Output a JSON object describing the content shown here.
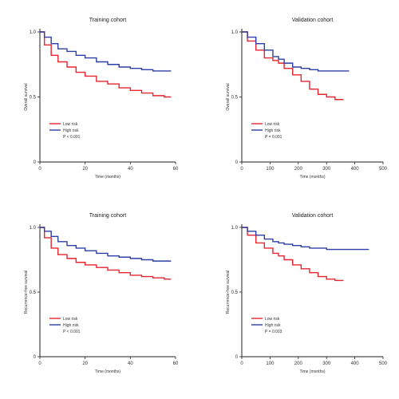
{
  "colors": {
    "red": "#e8242f",
    "blue": "#2b3fa6",
    "axis": "#222222"
  },
  "chart_data": [
    {
      "type": "line",
      "title": "Training cohort",
      "xlabel": "Time (months)",
      "ylabel": "Overall survival",
      "xlim": [
        0,
        60
      ],
      "ylim": [
        0,
        1
      ],
      "x_ticks": [
        "0",
        "20",
        "40",
        "60"
      ],
      "y_ticks": [
        "0",
        "0.5",
        "1.0"
      ],
      "legend": [
        "Low risk",
        "High risk",
        "P < 0.001"
      ],
      "legend_placement": "bottom-left",
      "series": [
        {
          "name": "Low risk",
          "color": "red",
          "x": [
            0,
            2,
            5,
            8,
            12,
            16,
            20,
            25,
            30,
            35,
            40,
            45,
            50,
            55,
            58
          ],
          "y": [
            1.0,
            0.9,
            0.82,
            0.77,
            0.73,
            0.69,
            0.66,
            0.62,
            0.6,
            0.57,
            0.55,
            0.53,
            0.51,
            0.5,
            0.5
          ]
        },
        {
          "name": "High risk",
          "color": "blue",
          "x": [
            0,
            2,
            5,
            8,
            12,
            16,
            20,
            25,
            30,
            35,
            40,
            45,
            50,
            58
          ],
          "y": [
            1.0,
            0.96,
            0.91,
            0.87,
            0.85,
            0.82,
            0.8,
            0.77,
            0.75,
            0.73,
            0.72,
            0.71,
            0.7,
            0.7
          ]
        }
      ]
    },
    {
      "type": "line",
      "title": "Validation cohort",
      "xlabel": "Time (months)",
      "ylabel": "Overall survival",
      "xlim": [
        0,
        500
      ],
      "ylim": [
        0,
        1
      ],
      "x_ticks": [
        "0",
        "100",
        "200",
        "300",
        "400",
        "500"
      ],
      "y_ticks": [
        "0",
        "0.5",
        "1.0"
      ],
      "legend": [
        "Low risk",
        "High risk",
        "P = 0.001"
      ],
      "legend_placement": "bottom-left",
      "series": [
        {
          "name": "Low risk",
          "color": "red",
          "x": [
            0,
            20,
            50,
            80,
            110,
            130,
            150,
            180,
            210,
            240,
            270,
            300,
            330,
            360
          ],
          "y": [
            1.0,
            0.93,
            0.86,
            0.8,
            0.78,
            0.76,
            0.72,
            0.67,
            0.62,
            0.56,
            0.52,
            0.5,
            0.48,
            0.48
          ]
        },
        {
          "name": "High risk",
          "color": "blue",
          "x": [
            0,
            20,
            50,
            80,
            110,
            130,
            150,
            180,
            210,
            240,
            270,
            300,
            330,
            380
          ],
          "y": [
            1.0,
            0.96,
            0.91,
            0.86,
            0.81,
            0.79,
            0.76,
            0.73,
            0.72,
            0.71,
            0.7,
            0.7,
            0.7,
            0.7
          ]
        }
      ]
    },
    {
      "type": "line",
      "title": "Training cohort",
      "xlabel": "Time (months)",
      "ylabel": "Recurrence-free survival",
      "xlim": [
        0,
        60
      ],
      "ylim": [
        0,
        1
      ],
      "x_ticks": [
        "0",
        "20",
        "40",
        "60"
      ],
      "y_ticks": [
        "0",
        "0.5",
        "1.0"
      ],
      "legend": [
        "Low risk",
        "High risk",
        "P < 0.001"
      ],
      "legend_placement": "bottom-left",
      "series": [
        {
          "name": "Low risk",
          "color": "red",
          "x": [
            0,
            2,
            5,
            8,
            12,
            16,
            20,
            25,
            30,
            35,
            40,
            45,
            50,
            55,
            58
          ],
          "y": [
            1.0,
            0.92,
            0.84,
            0.79,
            0.76,
            0.73,
            0.71,
            0.69,
            0.67,
            0.65,
            0.63,
            0.62,
            0.61,
            0.6,
            0.6
          ]
        },
        {
          "name": "High risk",
          "color": "blue",
          "x": [
            0,
            2,
            5,
            8,
            12,
            16,
            20,
            25,
            30,
            35,
            40,
            45,
            50,
            58
          ],
          "y": [
            1.0,
            0.97,
            0.93,
            0.89,
            0.86,
            0.84,
            0.82,
            0.8,
            0.78,
            0.77,
            0.76,
            0.75,
            0.74,
            0.74
          ]
        }
      ]
    },
    {
      "type": "line",
      "title": "Validation cohort",
      "xlabel": "Time (months)",
      "ylabel": "Recurrence-free survival",
      "xlim": [
        0,
        500
      ],
      "ylim": [
        0,
        1
      ],
      "x_ticks": [
        "0",
        "100",
        "200",
        "300",
        "400",
        "500"
      ],
      "y_ticks": [
        "0",
        "0.5",
        "1.0"
      ],
      "legend": [
        "Low risk",
        "High risk",
        "P = 0.003"
      ],
      "legend_placement": "bottom-left",
      "series": [
        {
          "name": "Low risk",
          "color": "red",
          "x": [
            0,
            20,
            50,
            80,
            110,
            130,
            150,
            180,
            210,
            240,
            270,
            300,
            330,
            360
          ],
          "y": [
            1.0,
            0.94,
            0.88,
            0.84,
            0.8,
            0.78,
            0.75,
            0.71,
            0.68,
            0.65,
            0.62,
            0.6,
            0.59,
            0.59
          ]
        },
        {
          "name": "High risk",
          "color": "blue",
          "x": [
            0,
            20,
            50,
            80,
            110,
            130,
            150,
            180,
            210,
            240,
            270,
            300,
            330,
            360,
            390,
            420,
            450
          ],
          "y": [
            1.0,
            0.97,
            0.94,
            0.91,
            0.89,
            0.88,
            0.87,
            0.86,
            0.85,
            0.84,
            0.84,
            0.83,
            0.83,
            0.83,
            0.83,
            0.83,
            0.83
          ]
        }
      ]
    }
  ]
}
